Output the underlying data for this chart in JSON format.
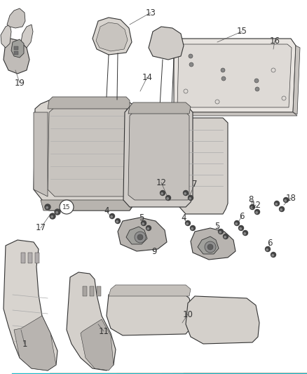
{
  "background_color": "#ffffff",
  "figsize": [
    4.38,
    5.33
  ],
  "dpi": 100,
  "line_color": "#333333",
  "label_color": "#333333",
  "label_fontsize": 8.5,
  "seat_back_color": "#d8d4cf",
  "seat_back_dark": "#b8b4af",
  "seat_back_inner": "#c8c4bf",
  "panel_color": "#e4e0dc",
  "panel_edge": "#c0bcb8",
  "cushion_color": "#d4d0cb",
  "mechanism_color": "#c0bcb8",
  "bolt_color": "#555555",
  "hinge_color": "#a8a4a0"
}
